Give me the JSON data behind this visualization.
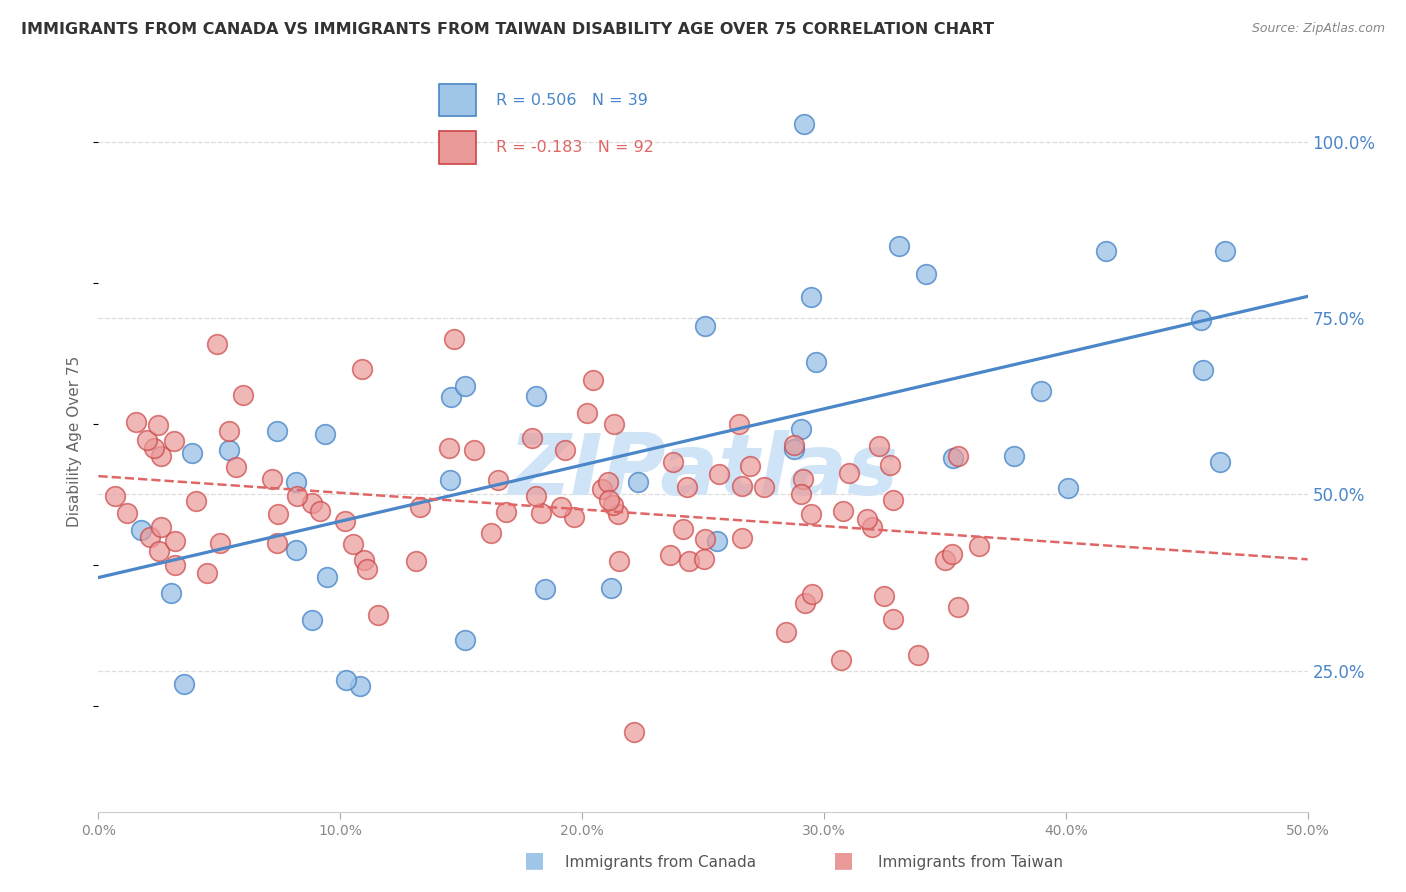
{
  "title": "IMMIGRANTS FROM CANADA VS IMMIGRANTS FROM TAIWAN DISABILITY AGE OVER 75 CORRELATION CHART",
  "source": "Source: ZipAtlas.com",
  "ylabel": "Disability Age Over 75",
  "legend_canada": "Immigrants from Canada",
  "legend_taiwan": "Immigrants from Taiwan",
  "r_canada": 0.506,
  "n_canada": 39,
  "r_taiwan": -0.183,
  "n_taiwan": 92,
  "xlim": [
    0.0,
    0.5
  ],
  "ylim": [
    0.05,
    1.1
  ],
  "xtick_values": [
    0.0,
    0.1,
    0.2,
    0.3,
    0.4,
    0.5
  ],
  "xtick_labels": [
    "0.0%",
    "10.0%",
    "20.0%",
    "30.0%",
    "40.0%",
    "50.0%"
  ],
  "ytick_values_right": [
    1.0,
    0.75,
    0.5,
    0.25
  ],
  "ytick_labels_right": [
    "100.0%",
    "75.0%",
    "50.0%",
    "25.0%"
  ],
  "color_canada_fill": "#9fc5e8",
  "color_canada_edge": "#4a86c8",
  "color_taiwan_fill": "#ea9999",
  "color_taiwan_edge": "#cc4444",
  "color_canada_line": "#4a86c8",
  "color_taiwan_line": "#e06666",
  "grid_color": "#dddddd",
  "watermark": "ZIPatlas",
  "watermark_color": "#d0e4f7"
}
